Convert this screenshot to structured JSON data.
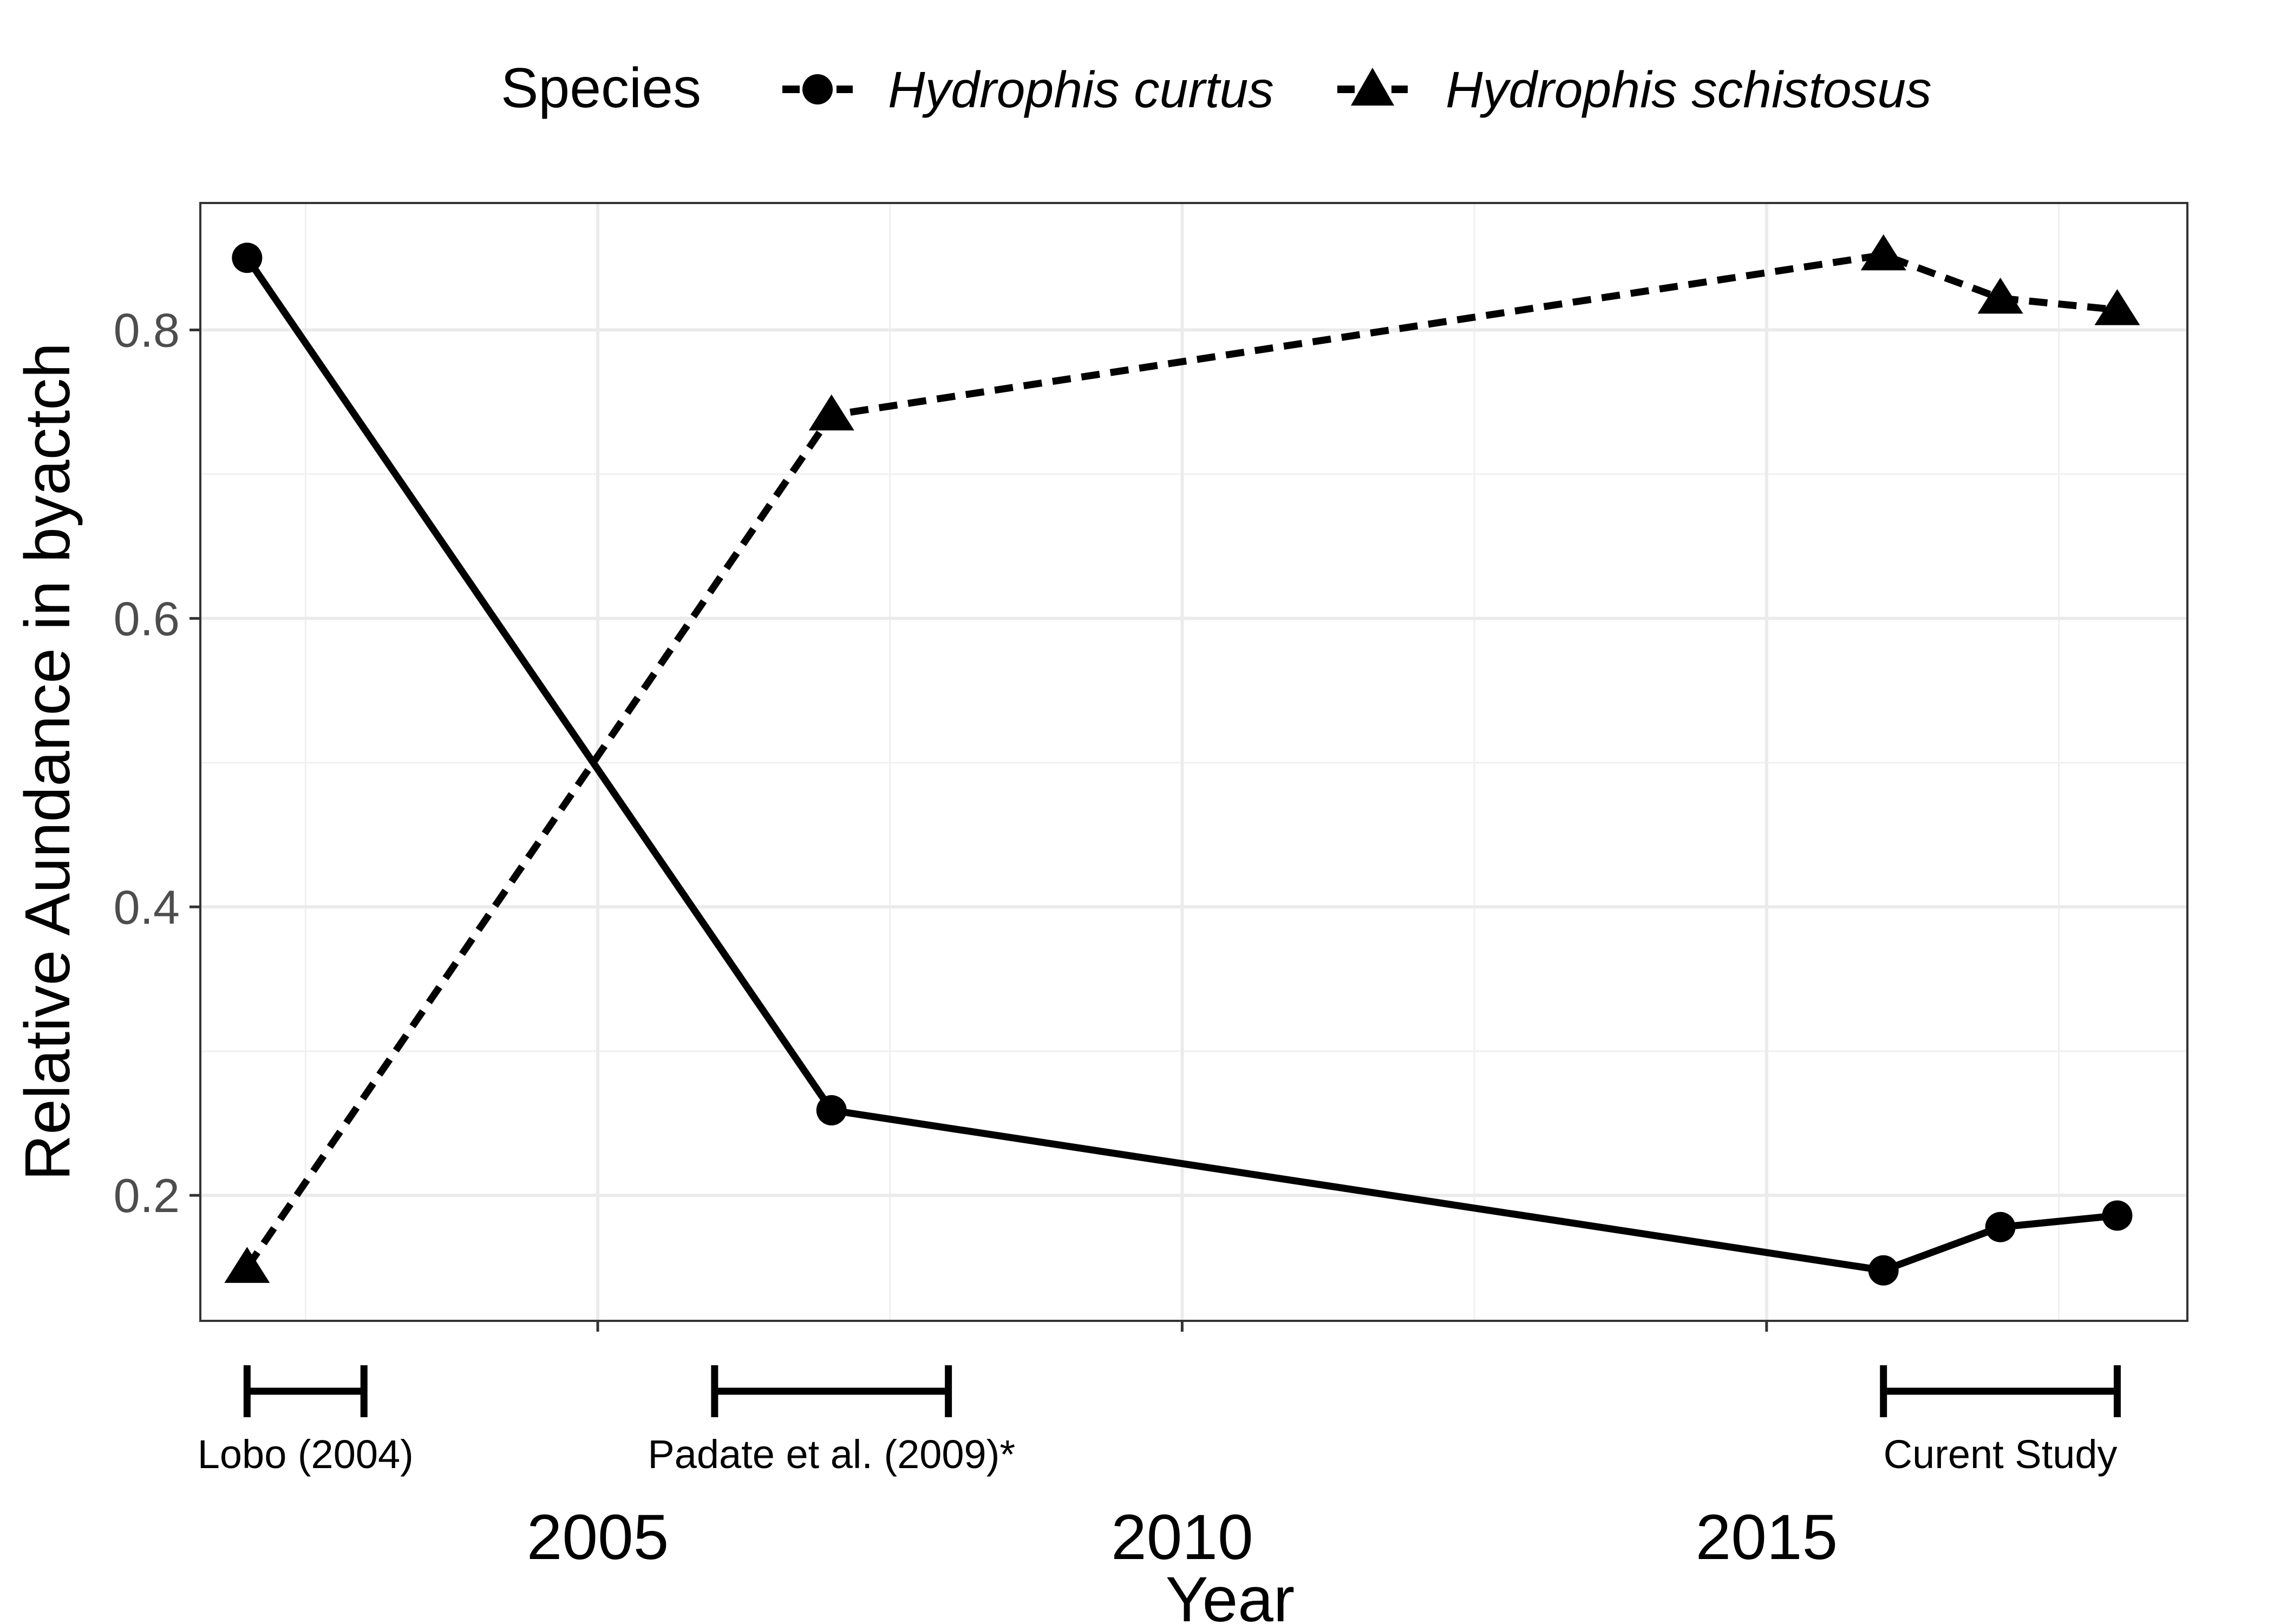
{
  "chart_data": {
    "type": "line",
    "xlabel": "Year",
    "ylabel": "Relative Aundance in byactch",
    "xlim": [
      2001.6,
      2018.6
    ],
    "ylim": [
      0.113,
      0.888
    ],
    "x_ticks": [
      2005,
      2010,
      2015
    ],
    "y_ticks": [
      0.2,
      0.4,
      0.6,
      0.8
    ],
    "grid": true,
    "legend": {
      "title": "Species",
      "position": "top"
    },
    "series": [
      {
        "name": "Hydrophis curtus",
        "marker": "circle",
        "line": "solid",
        "color": "#000000",
        "points": [
          {
            "x": 2002,
            "y": 0.85
          },
          {
            "x": 2007,
            "y": 0.259
          },
          {
            "x": 2016,
            "y": 0.148
          },
          {
            "x": 2017,
            "y": 0.178
          },
          {
            "x": 2018,
            "y": 0.186
          }
        ]
      },
      {
        "name": "Hydrophis schistosus",
        "marker": "triangle",
        "line": "dashed",
        "color": "#000000",
        "points": [
          {
            "x": 2002,
            "y": 0.15
          },
          {
            "x": 2007,
            "y": 0.741
          },
          {
            "x": 2016,
            "y": 0.852
          },
          {
            "x": 2017,
            "y": 0.822
          },
          {
            "x": 2018,
            "y": 0.814
          }
        ]
      }
    ],
    "study_periods": [
      {
        "label": "Lobo (2004)",
        "start": 2002,
        "end": 2003
      },
      {
        "label": "Padate et al. (2009)*",
        "start": 2006,
        "end": 2008
      },
      {
        "label": "Curent Study",
        "start": 2016,
        "end": 2018
      }
    ]
  }
}
